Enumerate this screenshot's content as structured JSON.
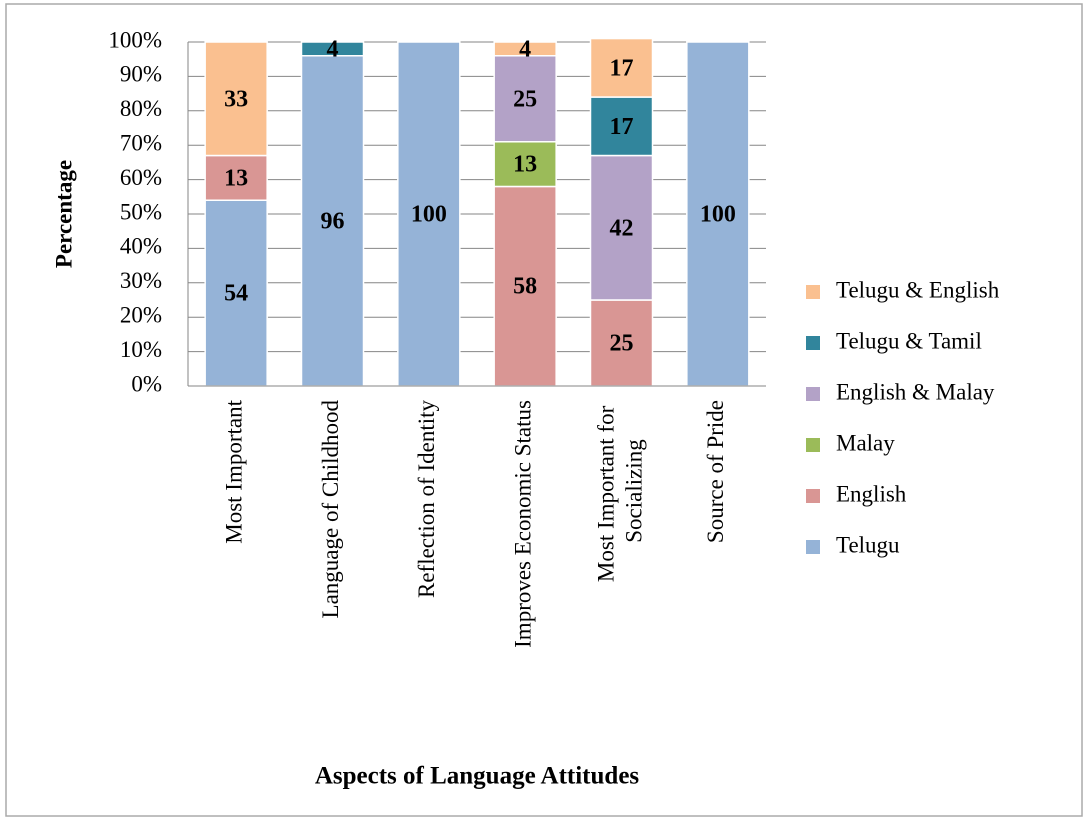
{
  "chart_data": {
    "type": "stacked_bar",
    "x_label": "Aspects of Language Attitudes",
    "y_label": "Percentage",
    "categories": [
      "Most Important",
      "Language of Childhood",
      "Reflection of Identity",
      "Improves Economic Status",
      "Most Important for Socializing",
      "Source of Pride"
    ],
    "series": [
      {
        "name": "Telugu",
        "color": "#95b3d7",
        "values": [
          54,
          96,
          100,
          null,
          null,
          100
        ]
      },
      {
        "name": "English",
        "color": "#d99694",
        "values": [
          13,
          null,
          null,
          58,
          25,
          null
        ]
      },
      {
        "name": "Malay",
        "color": "#9bbb59",
        "values": [
          null,
          null,
          null,
          13,
          null,
          null
        ]
      },
      {
        "name": "English & Malay",
        "color": "#b3a2c7",
        "values": [
          null,
          null,
          null,
          25,
          42,
          null
        ]
      },
      {
        "name": "Telugu & Tamil",
        "color": "#31859c",
        "values": [
          null,
          4,
          null,
          null,
          17,
          null
        ]
      },
      {
        "name": "Telugu & English",
        "color": "#fac090",
        "values": [
          33,
          null,
          null,
          4,
          17,
          null
        ]
      }
    ],
    "ylim": [
      0,
      100
    ],
    "yticks": [
      {
        "value": 0,
        "label": "0%"
      },
      {
        "value": 10,
        "label": "10%"
      },
      {
        "value": 20,
        "label": "20%"
      },
      {
        "value": 30,
        "label": "30%"
      },
      {
        "value": 40,
        "label": "40%"
      },
      {
        "value": 50,
        "label": "50%"
      },
      {
        "value": 60,
        "label": "60%"
      },
      {
        "value": 70,
        "label": "70%"
      },
      {
        "value": 80,
        "label": "80%"
      },
      {
        "value": 90,
        "label": "90%"
      },
      {
        "value": 100,
        "label": "100%"
      }
    ],
    "grid": true,
    "legend": "right"
  }
}
